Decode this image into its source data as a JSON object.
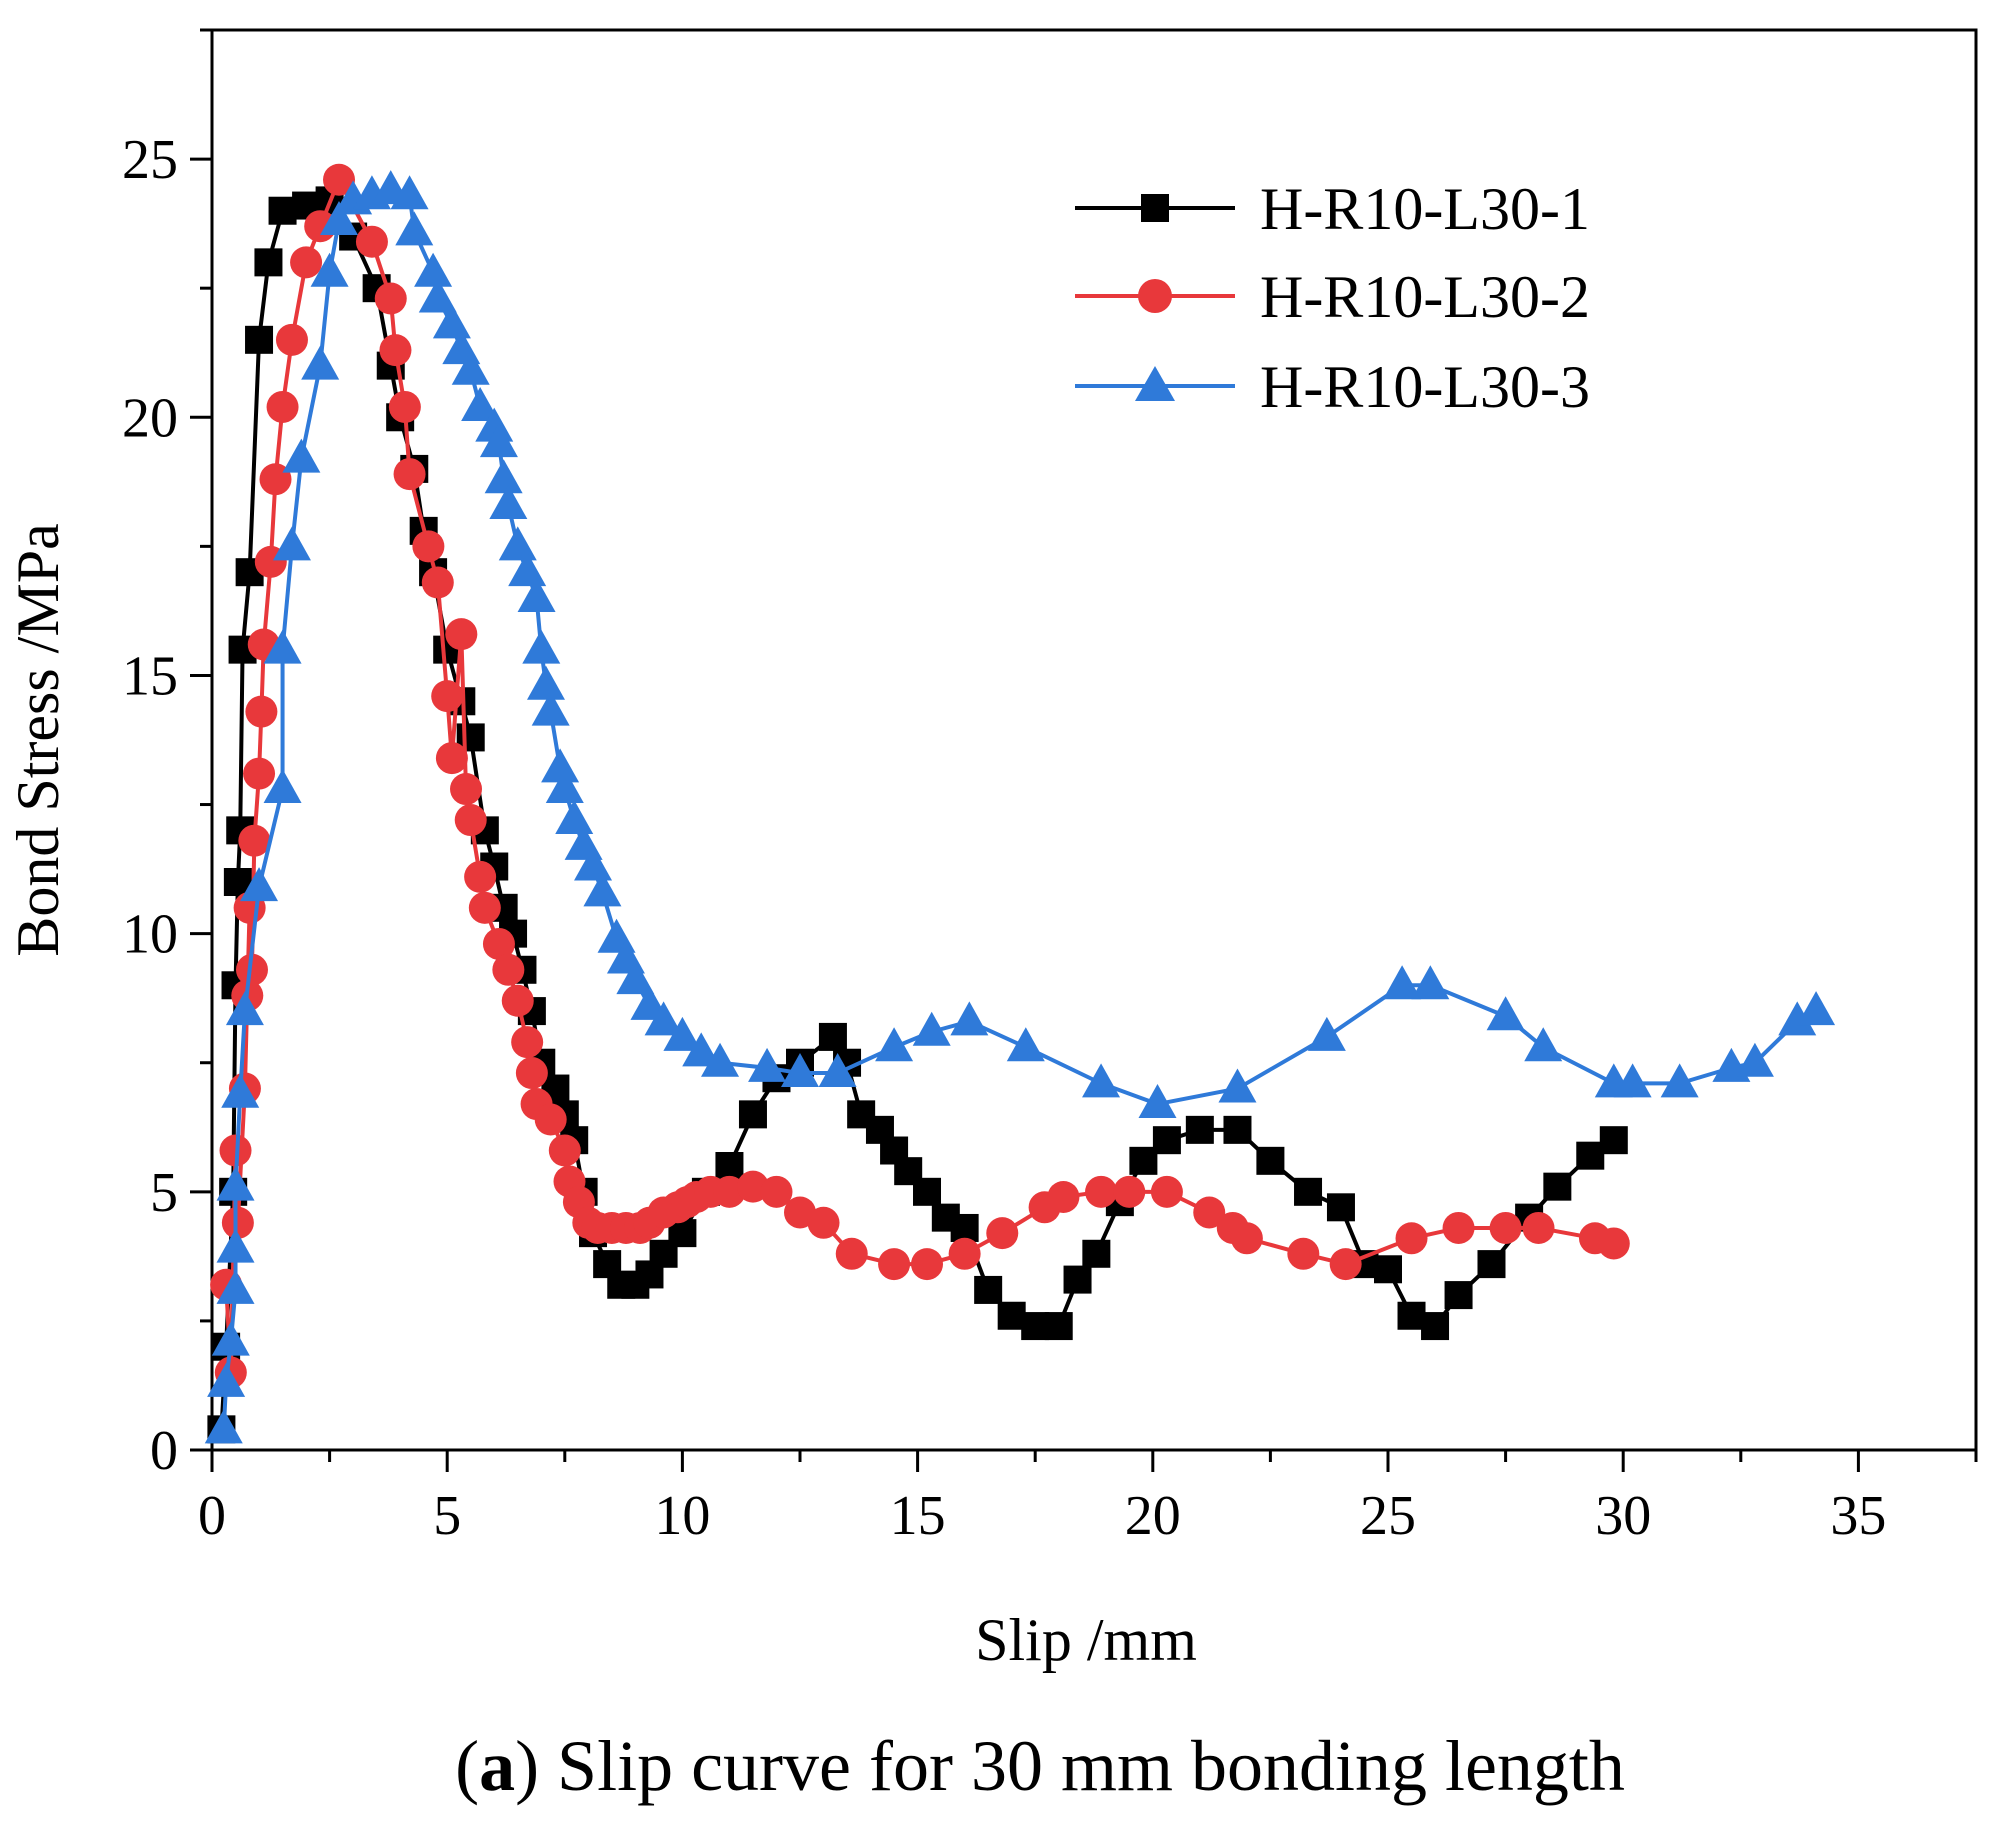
{
  "caption": {
    "letter": "a",
    "open_paren": "(",
    "close_paren": ")",
    "text": " Slip curve for 30 mm bonding length"
  },
  "chart_data": {
    "type": "line",
    "title": "",
    "xlabel": "Slip /mm",
    "ylabel": "Bond Stress /MPa",
    "xlim": [
      0,
      37.5
    ],
    "ylim": [
      0,
      27.5
    ],
    "xticks": [
      0,
      5,
      10,
      15,
      20,
      25,
      30,
      35
    ],
    "yticks": [
      0,
      5,
      10,
      15,
      20,
      25
    ],
    "grid": false,
    "legend_position": "top-right",
    "series": [
      {
        "name": "H-R10-L30-1",
        "color": "#000000",
        "marker": "square",
        "points": [
          [
            0.2,
            0.4
          ],
          [
            0.3,
            2.0
          ],
          [
            0.45,
            5.0
          ],
          [
            0.5,
            9.0
          ],
          [
            0.55,
            11.0
          ],
          [
            0.6,
            12.0
          ],
          [
            0.65,
            15.5
          ],
          [
            0.8,
            17.0
          ],
          [
            1.0,
            21.5
          ],
          [
            1.2,
            23.0
          ],
          [
            1.5,
            24.0
          ],
          [
            2.0,
            24.1
          ],
          [
            2.5,
            24.2
          ],
          [
            3.0,
            23.5
          ],
          [
            3.5,
            22.5
          ],
          [
            3.8,
            21.0
          ],
          [
            4.0,
            20.0
          ],
          [
            4.3,
            19.0
          ],
          [
            4.5,
            17.8
          ],
          [
            4.7,
            17.0
          ],
          [
            5.0,
            15.5
          ],
          [
            5.3,
            14.5
          ],
          [
            5.5,
            13.8
          ],
          [
            5.8,
            12.0
          ],
          [
            6.0,
            11.3
          ],
          [
            6.2,
            10.5
          ],
          [
            6.4,
            10.0
          ],
          [
            6.6,
            9.3
          ],
          [
            6.8,
            8.5
          ],
          [
            7.0,
            7.5
          ],
          [
            7.3,
            7.0
          ],
          [
            7.5,
            6.5
          ],
          [
            7.7,
            6.0
          ],
          [
            7.9,
            5.0
          ],
          [
            8.1,
            4.2
          ],
          [
            8.4,
            3.6
          ],
          [
            8.7,
            3.2
          ],
          [
            9.0,
            3.2
          ],
          [
            9.3,
            3.4
          ],
          [
            9.6,
            3.8
          ],
          [
            10.0,
            4.2
          ],
          [
            10.5,
            5.0
          ],
          [
            11.0,
            5.5
          ],
          [
            11.5,
            6.5
          ],
          [
            12.0,
            7.2
          ],
          [
            12.5,
            7.5
          ],
          [
            13.2,
            8.0
          ],
          [
            13.5,
            7.5
          ],
          [
            13.8,
            6.5
          ],
          [
            14.2,
            6.2
          ],
          [
            14.5,
            5.8
          ],
          [
            14.8,
            5.4
          ],
          [
            15.2,
            5.0
          ],
          [
            15.6,
            4.5
          ],
          [
            16.0,
            4.3
          ],
          [
            16.5,
            3.1
          ],
          [
            17.0,
            2.6
          ],
          [
            17.5,
            2.4
          ],
          [
            18.0,
            2.4
          ],
          [
            18.4,
            3.3
          ],
          [
            18.8,
            3.8
          ],
          [
            19.3,
            4.8
          ],
          [
            19.8,
            5.6
          ],
          [
            20.3,
            6.0
          ],
          [
            21.0,
            6.2
          ],
          [
            21.8,
            6.2
          ],
          [
            22.5,
            5.6
          ],
          [
            23.3,
            5.0
          ],
          [
            24.0,
            4.7
          ],
          [
            24.5,
            3.6
          ],
          [
            25.0,
            3.5
          ],
          [
            25.5,
            2.6
          ],
          [
            26.0,
            2.4
          ],
          [
            26.5,
            3.0
          ],
          [
            27.2,
            3.6
          ],
          [
            28.0,
            4.5
          ],
          [
            28.6,
            5.1
          ],
          [
            29.3,
            5.7
          ],
          [
            29.8,
            6.0
          ]
        ]
      },
      {
        "name": "H-R10-L30-2",
        "color": "#e8383b",
        "marker": "circle",
        "points": [
          [
            0.3,
            3.2
          ],
          [
            0.4,
            1.5
          ],
          [
            0.5,
            5.8
          ],
          [
            0.55,
            4.4
          ],
          [
            0.7,
            7.0
          ],
          [
            0.75,
            8.8
          ],
          [
            0.8,
            10.5
          ],
          [
            0.85,
            9.3
          ],
          [
            0.9,
            11.8
          ],
          [
            1.0,
            13.1
          ],
          [
            1.05,
            14.3
          ],
          [
            1.1,
            15.6
          ],
          [
            1.25,
            17.2
          ],
          [
            1.35,
            18.8
          ],
          [
            1.5,
            20.2
          ],
          [
            1.7,
            21.5
          ],
          [
            2.0,
            23.0
          ],
          [
            2.3,
            23.7
          ],
          [
            2.7,
            24.6
          ],
          [
            3.4,
            23.4
          ],
          [
            3.8,
            22.3
          ],
          [
            3.9,
            21.3
          ],
          [
            4.1,
            20.2
          ],
          [
            4.2,
            18.9
          ],
          [
            4.6,
            17.5
          ],
          [
            4.8,
            16.8
          ],
          [
            5.0,
            14.6
          ],
          [
            5.1,
            13.4
          ],
          [
            5.3,
            15.8
          ],
          [
            5.4,
            12.8
          ],
          [
            5.5,
            12.2
          ],
          [
            5.7,
            11.1
          ],
          [
            5.8,
            10.5
          ],
          [
            6.1,
            9.8
          ],
          [
            6.3,
            9.3
          ],
          [
            6.5,
            8.7
          ],
          [
            6.7,
            7.9
          ],
          [
            6.8,
            7.3
          ],
          [
            6.9,
            6.7
          ],
          [
            7.2,
            6.4
          ],
          [
            7.5,
            5.8
          ],
          [
            7.6,
            5.2
          ],
          [
            7.8,
            4.8
          ],
          [
            8.0,
            4.4
          ],
          [
            8.2,
            4.3
          ],
          [
            8.5,
            4.3
          ],
          [
            8.8,
            4.3
          ],
          [
            9.1,
            4.3
          ],
          [
            9.3,
            4.4
          ],
          [
            9.6,
            4.6
          ],
          [
            9.9,
            4.7
          ],
          [
            10.1,
            4.8
          ],
          [
            10.3,
            4.9
          ],
          [
            10.6,
            5.0
          ],
          [
            11.0,
            5.0
          ],
          [
            11.5,
            5.1
          ],
          [
            12.0,
            5.0
          ],
          [
            12.5,
            4.6
          ],
          [
            13.0,
            4.4
          ],
          [
            13.6,
            3.8
          ],
          [
            14.5,
            3.6
          ],
          [
            15.2,
            3.6
          ],
          [
            16.0,
            3.8
          ],
          [
            16.8,
            4.2
          ],
          [
            17.7,
            4.7
          ],
          [
            18.1,
            4.9
          ],
          [
            18.9,
            5.0
          ],
          [
            19.5,
            5.0
          ],
          [
            20.3,
            5.0
          ],
          [
            21.2,
            4.6
          ],
          [
            21.7,
            4.3
          ],
          [
            22.0,
            4.1
          ],
          [
            23.2,
            3.8
          ],
          [
            24.1,
            3.6
          ],
          [
            25.5,
            4.1
          ],
          [
            26.5,
            4.3
          ],
          [
            27.5,
            4.3
          ],
          [
            28.2,
            4.3
          ],
          [
            29.4,
            4.1
          ],
          [
            29.8,
            4.0
          ]
        ]
      },
      {
        "name": "H-R10-L30-3",
        "color": "#2f7ad9",
        "marker": "triangle",
        "points": [
          [
            0.25,
            0.4
          ],
          [
            0.3,
            1.3
          ],
          [
            0.4,
            2.1
          ],
          [
            0.5,
            3.1
          ],
          [
            0.5,
            3.9
          ],
          [
            0.5,
            5.1
          ],
          [
            0.6,
            6.9
          ],
          [
            0.7,
            8.5
          ],
          [
            1.0,
            10.9
          ],
          [
            1.5,
            12.8
          ],
          [
            1.5,
            15.5
          ],
          [
            1.7,
            17.5
          ],
          [
            1.9,
            19.2
          ],
          [
            2.3,
            21.0
          ],
          [
            2.5,
            22.8
          ],
          [
            2.7,
            23.8
          ],
          [
            3.0,
            24.2
          ],
          [
            3.4,
            24.3
          ],
          [
            3.8,
            24.4
          ],
          [
            4.2,
            24.3
          ],
          [
            4.3,
            23.6
          ],
          [
            4.7,
            22.8
          ],
          [
            4.8,
            22.3
          ],
          [
            5.1,
            21.8
          ],
          [
            5.3,
            21.3
          ],
          [
            5.5,
            20.9
          ],
          [
            5.7,
            20.2
          ],
          [
            6.0,
            19.8
          ],
          [
            6.1,
            19.5
          ],
          [
            6.2,
            18.8
          ],
          [
            6.3,
            18.3
          ],
          [
            6.5,
            17.5
          ],
          [
            6.7,
            17.0
          ],
          [
            6.9,
            16.5
          ],
          [
            7.0,
            15.5
          ],
          [
            7.1,
            14.8
          ],
          [
            7.2,
            14.3
          ],
          [
            7.4,
            13.2
          ],
          [
            7.5,
            12.8
          ],
          [
            7.7,
            12.2
          ],
          [
            7.9,
            11.7
          ],
          [
            8.1,
            11.3
          ],
          [
            8.3,
            10.8
          ],
          [
            8.6,
            9.9
          ],
          [
            8.8,
            9.5
          ],
          [
            9.0,
            9.1
          ],
          [
            9.3,
            8.6
          ],
          [
            9.6,
            8.3
          ],
          [
            10.0,
            8.0
          ],
          [
            10.4,
            7.7
          ],
          [
            10.8,
            7.5
          ],
          [
            11.8,
            7.4
          ],
          [
            12.5,
            7.3
          ],
          [
            13.3,
            7.3
          ],
          [
            14.5,
            7.8
          ],
          [
            15.3,
            8.1
          ],
          [
            16.1,
            8.3
          ],
          [
            17.3,
            7.8
          ],
          [
            18.9,
            7.1
          ],
          [
            20.1,
            6.7
          ],
          [
            21.8,
            7.0
          ],
          [
            23.7,
            8.0
          ],
          [
            25.3,
            9.0
          ],
          [
            25.9,
            9.0
          ],
          [
            27.5,
            8.4
          ],
          [
            28.3,
            7.8
          ],
          [
            29.8,
            7.1
          ],
          [
            30.2,
            7.1
          ],
          [
            31.2,
            7.1
          ],
          [
            32.3,
            7.4
          ],
          [
            32.8,
            7.5
          ],
          [
            33.7,
            8.3
          ],
          [
            34.1,
            8.5
          ]
        ]
      }
    ]
  }
}
